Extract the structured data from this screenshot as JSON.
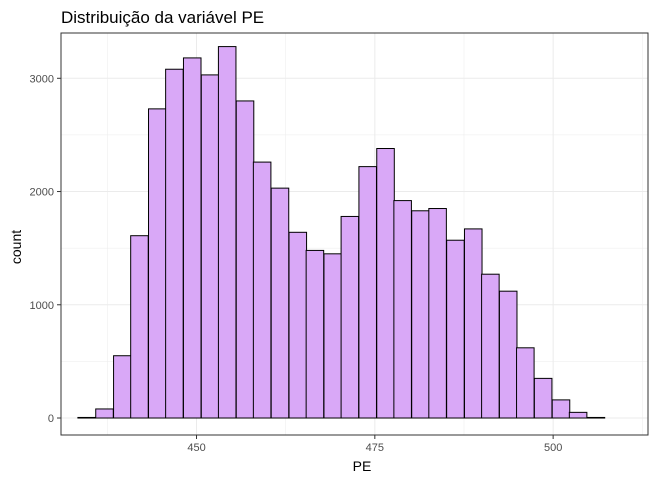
{
  "chart_data": {
    "type": "bar",
    "title": "Distribuição da variável PE",
    "xlabel": "PE",
    "ylabel": "count",
    "xlim": [
      431.0,
      513.3
    ],
    "ylim": [
      -150,
      3400
    ],
    "x_ticks": [
      450,
      475,
      500
    ],
    "y_ticks": [
      0,
      1000,
      2000,
      3000
    ],
    "grid": true,
    "bin_width": 2.46,
    "bins": [
      {
        "x": 434.6,
        "count": 5
      },
      {
        "x": 437.1,
        "count": 80
      },
      {
        "x": 439.6,
        "count": 550
      },
      {
        "x": 442.0,
        "count": 1610
      },
      {
        "x": 444.5,
        "count": 2730
      },
      {
        "x": 446.9,
        "count": 3080
      },
      {
        "x": 449.4,
        "count": 3180
      },
      {
        "x": 451.9,
        "count": 3030
      },
      {
        "x": 454.3,
        "count": 3280
      },
      {
        "x": 456.8,
        "count": 2800
      },
      {
        "x": 459.2,
        "count": 2260
      },
      {
        "x": 461.7,
        "count": 2030
      },
      {
        "x": 464.2,
        "count": 1640
      },
      {
        "x": 466.6,
        "count": 1480
      },
      {
        "x": 469.1,
        "count": 1450
      },
      {
        "x": 471.5,
        "count": 1780
      },
      {
        "x": 474.0,
        "count": 2220
      },
      {
        "x": 476.5,
        "count": 2380
      },
      {
        "x": 478.9,
        "count": 1920
      },
      {
        "x": 481.4,
        "count": 1830
      },
      {
        "x": 483.8,
        "count": 1850
      },
      {
        "x": 486.3,
        "count": 1570
      },
      {
        "x": 488.8,
        "count": 1670
      },
      {
        "x": 491.2,
        "count": 1270
      },
      {
        "x": 493.7,
        "count": 1120
      },
      {
        "x": 496.1,
        "count": 620
      },
      {
        "x": 498.6,
        "count": 350
      },
      {
        "x": 501.1,
        "count": 160
      },
      {
        "x": 503.5,
        "count": 50
      },
      {
        "x": 506.0,
        "count": 5
      }
    ],
    "colors": {
      "fill": "#d9a8f7",
      "outline": "#000000",
      "grid": "#ebebeb",
      "panel_border": "#333333",
      "tick_text": "#4d4d4d"
    }
  }
}
